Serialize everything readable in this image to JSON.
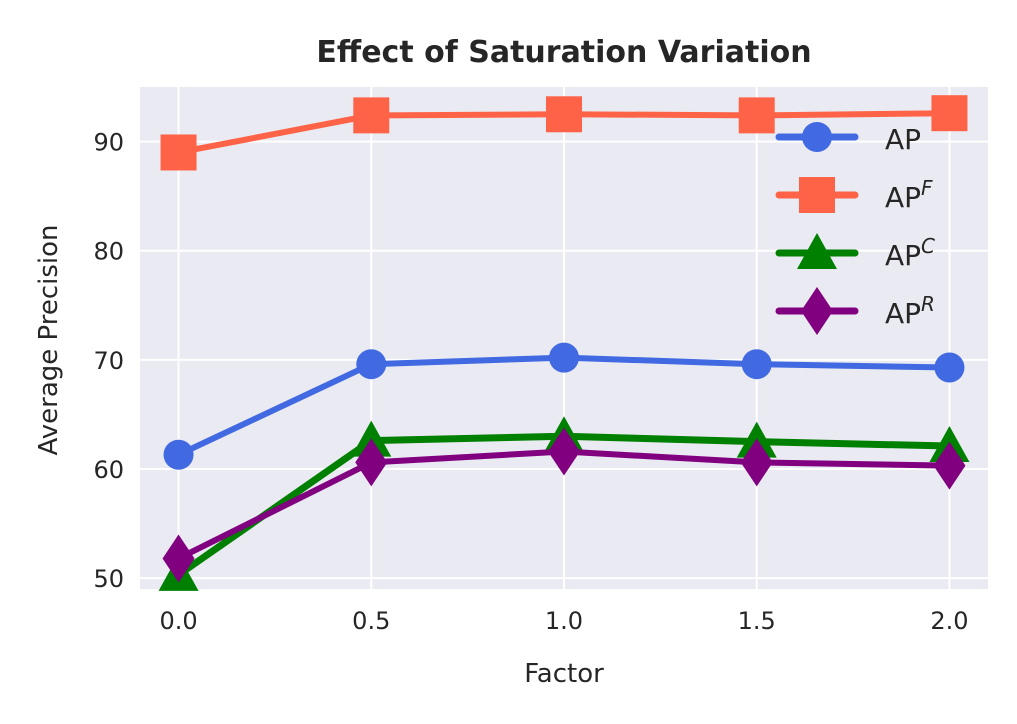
{
  "chart_data": {
    "type": "line",
    "title": "Effect of Saturation Variation",
    "xlabel": "Factor",
    "ylabel": "Average Precision",
    "x": [
      0.0,
      0.5,
      1.0,
      1.5,
      2.0
    ],
    "xticks": [
      "0.0",
      "0.5",
      "1.0",
      "1.5",
      "2.0"
    ],
    "yticks": [
      "50",
      "60",
      "70",
      "80",
      "90"
    ],
    "xlim": [
      -0.1,
      2.1
    ],
    "ylim": [
      49.0,
      95.0
    ],
    "grid": true,
    "legend_position": "top-right",
    "series": [
      {
        "name": "AP",
        "base": "AP",
        "sup": "",
        "marker": "circle",
        "color": "#4169e1",
        "values": [
          61.3,
          69.6,
          70.2,
          69.6,
          69.3
        ]
      },
      {
        "name": "AP^F",
        "base": "AP",
        "sup": "F",
        "marker": "square",
        "color": "#ff6347",
        "values": [
          89.0,
          92.4,
          92.5,
          92.4,
          92.6
        ]
      },
      {
        "name": "AP^C",
        "base": "AP",
        "sup": "C",
        "marker": "triangle",
        "color": "#008000",
        "values": [
          50.3,
          62.6,
          63.0,
          62.5,
          62.1
        ]
      },
      {
        "name": "AP^R",
        "base": "AP",
        "sup": "R",
        "marker": "diamond",
        "color": "#800080",
        "values": [
          51.8,
          60.6,
          61.6,
          60.6,
          60.3
        ]
      }
    ]
  }
}
